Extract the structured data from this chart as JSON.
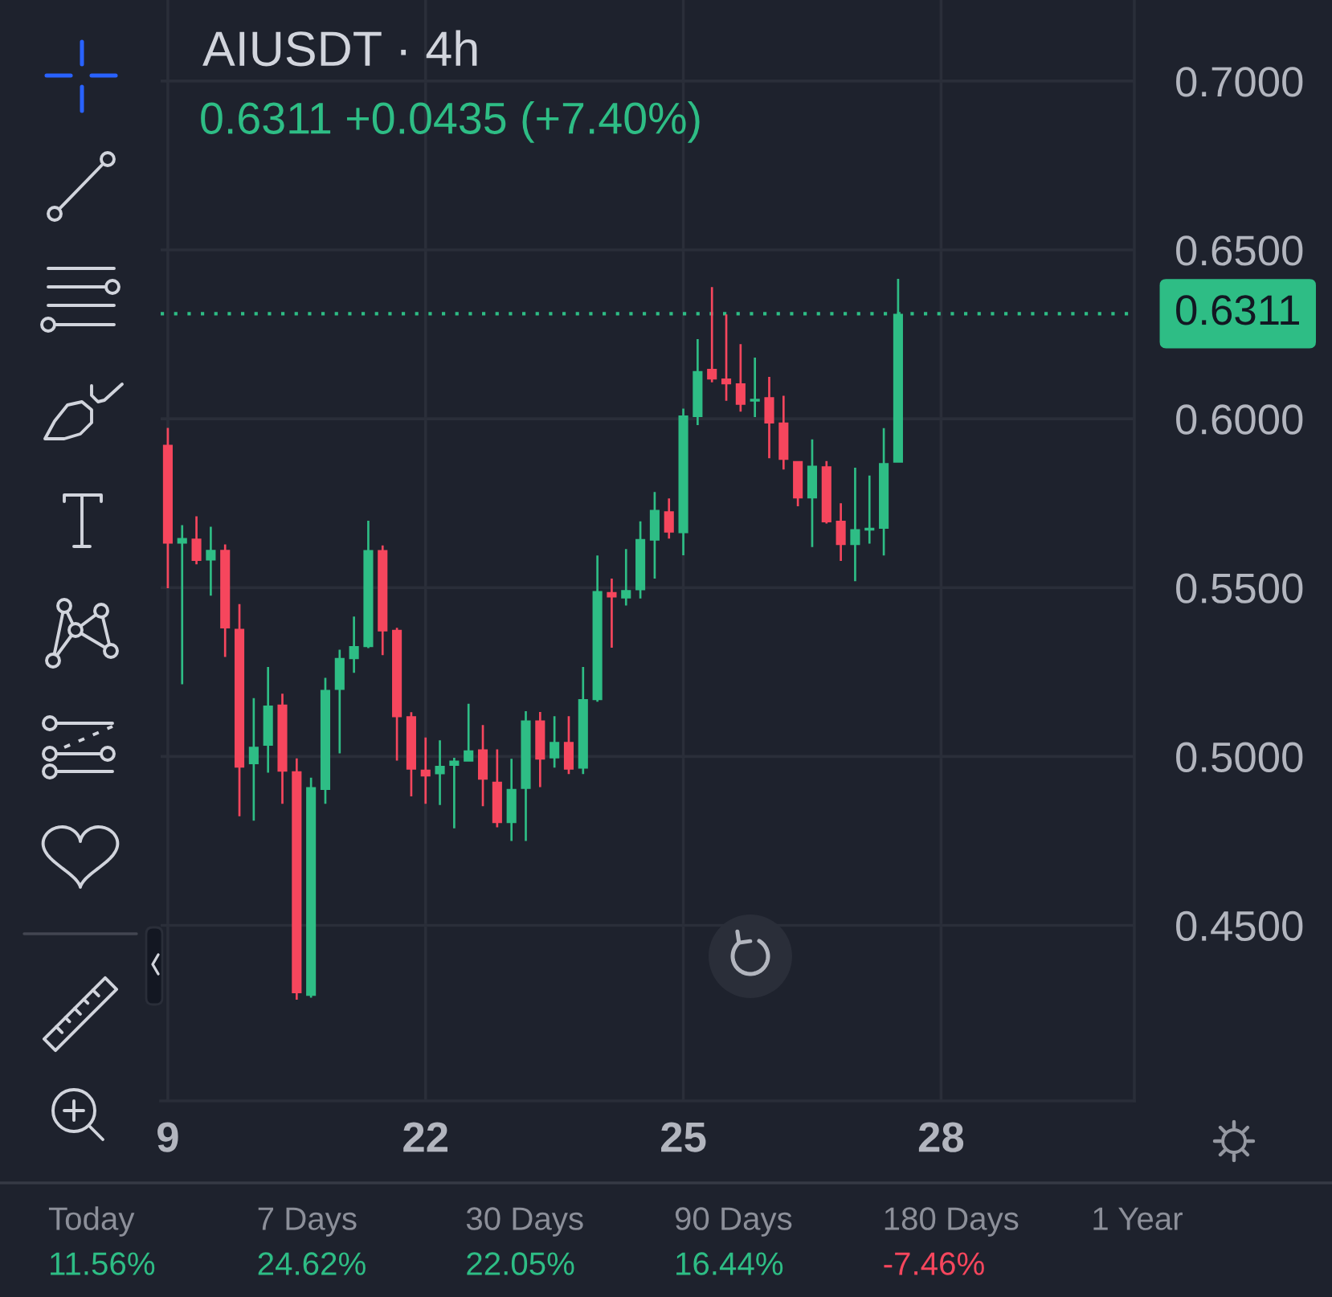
{
  "chart_data": [
    {
      "type": "candlestick",
      "title": "AIUSDT · 4h",
      "subtitle": "0.6311 +0.0435 (+7.40%)",
      "categories": [
        "9",
        null,
        null,
        null,
        null,
        null,
        null,
        null,
        null,
        null,
        null,
        null,
        null,
        null,
        null,
        null,
        null,
        null,
        "22",
        null,
        null,
        null,
        null,
        null,
        null,
        null,
        null,
        null,
        null,
        null,
        null,
        null,
        null,
        null,
        null,
        null,
        "25",
        null,
        null,
        null,
        null,
        null,
        null,
        null,
        null,
        null,
        null,
        null,
        null,
        null,
        null,
        null,
        null,
        null,
        "28",
        null,
        null,
        null,
        null,
        null,
        null,
        null,
        null,
        null,
        null,
        null,
        null,
        null
      ],
      "ohlc": [
        [
          0.5923,
          0.5973,
          0.5498,
          0.563
        ],
        [
          0.563,
          0.5685,
          0.5214,
          0.5647
        ],
        [
          0.5645,
          0.5711,
          0.5569,
          0.5579
        ],
        [
          0.558,
          0.568,
          0.5476,
          0.5612
        ],
        [
          0.5612,
          0.5628,
          0.5295,
          0.5379
        ],
        [
          0.5378,
          0.5451,
          0.4823,
          0.4967
        ],
        [
          0.4977,
          0.5173,
          0.481,
          0.5029
        ],
        [
          0.5032,
          0.5265,
          0.4952,
          0.5151
        ],
        [
          0.5154,
          0.5186,
          0.486,
          0.4955
        ],
        [
          0.4956,
          0.4994,
          0.428,
          0.4299
        ],
        [
          0.4291,
          0.4937,
          0.4286,
          0.4909
        ],
        [
          0.4901,
          0.5233,
          0.486,
          0.5197
        ],
        [
          0.5197,
          0.5316,
          0.5009,
          0.5292
        ],
        [
          0.5288,
          0.5414,
          0.5248,
          0.5327
        ],
        [
          0.5324,
          0.5698,
          0.5321,
          0.5611
        ],
        [
          0.5611,
          0.5625,
          0.53,
          0.537
        ],
        [
          0.5375,
          0.5381,
          0.4988,
          0.5116
        ],
        [
          0.5119,
          0.5131,
          0.4882,
          0.4961
        ],
        [
          0.4961,
          0.5056,
          0.486,
          0.4941
        ],
        [
          0.4947,
          0.5048,
          0.4856,
          0.4972
        ],
        [
          0.4972,
          0.4996,
          0.4787,
          0.4988
        ],
        [
          0.4985,
          0.5156,
          0.4985,
          0.5018
        ],
        [
          0.5021,
          0.5093,
          0.4853,
          0.4931
        ],
        [
          0.4925,
          0.5021,
          0.479,
          0.4803
        ],
        [
          0.4803,
          0.4993,
          0.475,
          0.4904
        ],
        [
          0.4904,
          0.5134,
          0.475,
          0.5107
        ],
        [
          0.5107,
          0.5132,
          0.4909,
          0.4991
        ],
        [
          0.4994,
          0.5119,
          0.4967,
          0.5043
        ],
        [
          0.5043,
          0.5119,
          0.4948,
          0.4961
        ],
        [
          0.4964,
          0.5265,
          0.4948,
          0.517
        ],
        [
          0.5167,
          0.5595,
          0.5162,
          0.549
        ],
        [
          0.5487,
          0.5527,
          0.5322,
          0.5471
        ],
        [
          0.5468,
          0.5614,
          0.5447,
          0.5493
        ],
        [
          0.5492,
          0.5696,
          0.5468,
          0.5644
        ],
        [
          0.5639,
          0.5783,
          0.5527,
          0.573
        ],
        [
          0.5726,
          0.5764,
          0.5645,
          0.5663
        ],
        [
          0.5661,
          0.603,
          0.5596,
          0.601
        ],
        [
          0.6005,
          0.6236,
          0.5981,
          0.6141
        ],
        [
          0.6148,
          0.639,
          0.6108,
          0.6116
        ],
        [
          0.6119,
          0.6309,
          0.6053,
          0.6102
        ],
        [
          0.6105,
          0.6221,
          0.6021,
          0.6041
        ],
        [
          0.6051,
          0.6181,
          0.6005,
          0.6059
        ],
        [
          0.6064,
          0.6124,
          0.5883,
          0.5986
        ],
        [
          0.5989,
          0.6068,
          0.585,
          0.5878
        ],
        [
          0.5875,
          0.5875,
          0.5741,
          0.5764
        ],
        [
          0.5764,
          0.5939,
          0.562,
          0.5861
        ],
        [
          0.5859,
          0.5875,
          0.569,
          0.5693
        ],
        [
          0.5698,
          0.575,
          0.5579,
          0.5626
        ],
        [
          0.5626,
          0.5855,
          0.5519,
          0.5673
        ],
        [
          0.5669,
          0.5832,
          0.563,
          0.5677
        ],
        [
          0.5674,
          0.5972,
          0.5595,
          0.5869
        ],
        [
          0.587,
          0.6414,
          0.587,
          0.6311
        ],
        null,
        null,
        null,
        null,
        null,
        null,
        null,
        null,
        null,
        null,
        null,
        null,
        null,
        null,
        null,
        null
      ],
      "colors": [
        "#f6465d",
        "#2ebd85",
        "#f6465d",
        "#2ebd85",
        "#f6465d",
        "#f6465d",
        "#2ebd85",
        "#2ebd85",
        "#f6465d",
        "#f6465d",
        "#2ebd85",
        "#2ebd85",
        "#2ebd85",
        "#2ebd85",
        "#2ebd85",
        "#f6465d",
        "#f6465d",
        "#f6465d",
        "#f6465d",
        "#2ebd85",
        "#2ebd85",
        "#2ebd85",
        "#f6465d",
        "#f6465d",
        "#2ebd85",
        "#2ebd85",
        "#f6465d",
        "#2ebd85",
        "#f6465d",
        "#2ebd85",
        "#2ebd85",
        "#f6465d",
        "#2ebd85",
        "#2ebd85",
        "#2ebd85",
        "#f6465d",
        "#2ebd85",
        "#2ebd85",
        "#f6465d",
        "#f6465d",
        "#f6465d",
        "#2ebd85",
        "#f6465d",
        "#f6465d",
        "#f6465d",
        "#2ebd85",
        "#f6465d",
        "#f6465d",
        "#2ebd85",
        "#2ebd85",
        "#2ebd85",
        "#2ebd85",
        null,
        null,
        null,
        null,
        null,
        null,
        null,
        null,
        null,
        null,
        null,
        null,
        null,
        null,
        null,
        null
      ],
      "ylim": [
        0.398,
        0.724
      ],
      "yticks": [
        {
          "value": 0.45,
          "label": "0.4500"
        },
        {
          "value": 0.5,
          "label": "0.5000"
        },
        {
          "value": 0.55,
          "label": "0.5500"
        },
        {
          "value": 0.6,
          "label": "0.6000"
        },
        {
          "value": 0.65,
          "label": "0.6500"
        },
        {
          "value": 0.7,
          "label": "0.7000"
        }
      ],
      "grid": true,
      "ref_lines": [
        {
          "axis": "y",
          "value": 0.6311,
          "label": "0.6311",
          "color": "#2ebd85",
          "line_style": "dotted"
        }
      ]
    },
    {
      "type": "other",
      "categories": [
        "Today",
        "7 Days",
        "30 Days",
        "90 Days",
        "180 Days",
        "1 Year"
      ],
      "value_labels": [
        "11.56%",
        "24.62%",
        "22.05%",
        "16.44%",
        "-7.46%",
        null
      ],
      "colors": [
        "#2ebd85",
        "#2ebd85",
        "#2ebd85",
        "#2ebd85",
        "#f6465d",
        null
      ]
    }
  ]
}
